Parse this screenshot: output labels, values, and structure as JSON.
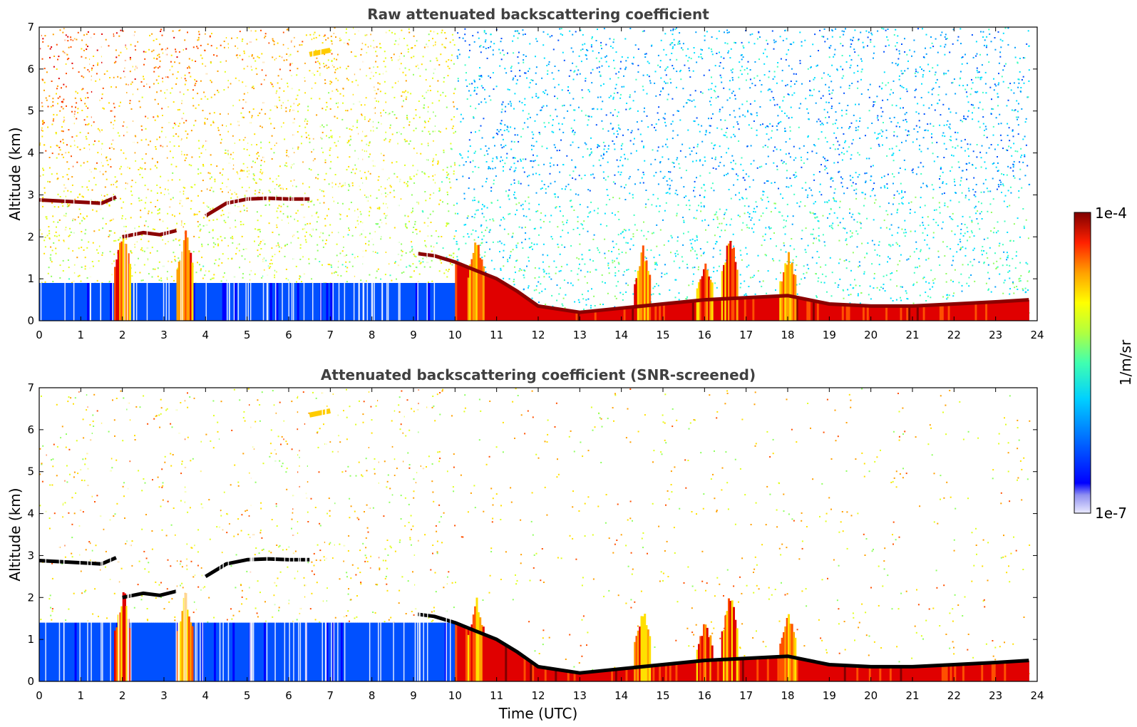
{
  "chart_data": [
    {
      "type": "heatmap",
      "title": "Raw attenuated backscattering coefficient",
      "xlabel": "",
      "ylabel": "Altitude (km)",
      "xlim": [
        0,
        24
      ],
      "ylim": [
        0,
        7
      ],
      "xticks": [
        "0",
        "1",
        "2",
        "3",
        "4",
        "5",
        "6",
        "7",
        "8",
        "9",
        "10",
        "11",
        "12",
        "13",
        "14",
        "15",
        "16",
        "17",
        "18",
        "19",
        "20",
        "21",
        "22",
        "23",
        "24"
      ],
      "yticks": [
        "0",
        "1",
        "2",
        "3",
        "4",
        "5",
        "6",
        "7"
      ],
      "data_end_time": 23.8,
      "cloud_layers": [
        {
          "t": [
            0,
            1.5,
            1.85
          ],
          "alt": [
            2.88,
            2.8,
            2.95
          ]
        },
        {
          "t": [
            2.0,
            2.5,
            2.9,
            3.3
          ],
          "alt": [
            2.0,
            2.1,
            2.05,
            2.15
          ]
        },
        {
          "t": [
            4.0,
            4.5,
            5.0,
            5.5,
            6.0,
            6.5
          ],
          "alt": [
            2.5,
            2.8,
            2.9,
            2.92,
            2.9,
            2.9
          ]
        },
        {
          "t": [
            6.5,
            7.0
          ],
          "alt": [
            6.35,
            6.45
          ]
        },
        {
          "t": [
            9.1,
            9.5,
            10.0,
            10.5,
            11.0,
            11.5,
            12.0,
            13.0,
            14.0,
            16.0,
            18.0,
            19.0,
            20.0,
            21.0,
            22.0,
            23.0,
            23.8
          ],
          "alt": [
            1.6,
            1.55,
            1.4,
            1.2,
            1.0,
            0.7,
            0.35,
            0.2,
            0.3,
            0.5,
            0.6,
            0.4,
            0.35,
            0.35,
            0.4,
            0.45,
            0.5
          ]
        }
      ],
      "plumes": [
        {
          "t": 2.0,
          "top": 2.3
        },
        {
          "t": 3.5,
          "top": 2.2
        },
        {
          "t": 10.5,
          "top": 2.1
        },
        {
          "t": 14.5,
          "top": 1.8
        },
        {
          "t": 16.0,
          "top": 1.5
        },
        {
          "t": 16.6,
          "top": 2.2
        },
        {
          "t": 18.0,
          "top": 1.7
        }
      ],
      "colorscale": {
        "min": "1e-7",
        "max": "1e-4",
        "label": "1/m/sr",
        "log": true
      }
    },
    {
      "type": "heatmap",
      "title": "Attenuated backscattering coefficient (SNR-screened)",
      "xlabel": "Time (UTC)",
      "ylabel": "Altitude (km)",
      "xlim": [
        0,
        24
      ],
      "ylim": [
        0,
        7
      ],
      "xticks": [
        "0",
        "1",
        "2",
        "3",
        "4",
        "5",
        "6",
        "7",
        "8",
        "9",
        "10",
        "11",
        "12",
        "13",
        "14",
        "15",
        "16",
        "17",
        "18",
        "19",
        "20",
        "21",
        "22",
        "23",
        "24"
      ],
      "yticks": [
        "0",
        "1",
        "2",
        "3",
        "4",
        "5",
        "6",
        "7"
      ],
      "screened": true
    }
  ],
  "colorbar": {
    "max_label": "1e-4",
    "min_label": "1e-7",
    "unit_label": "1/m/sr",
    "colors": {
      "low": "#1010e0",
      "mid_low": "#00ccff",
      "mid": "#80ff80",
      "mid_high": "#ffee00",
      "high": "#ff4000",
      "top": "#800000"
    }
  }
}
